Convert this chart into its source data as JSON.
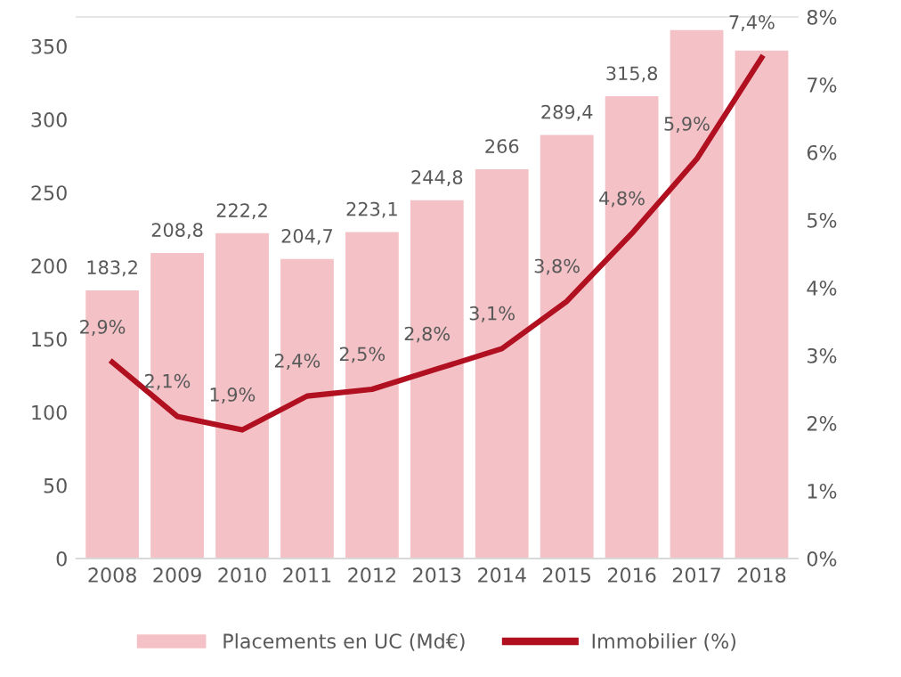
{
  "chart_data": {
    "type": "bar",
    "categories": [
      "2008",
      "2009",
      "2010",
      "2011",
      "2012",
      "2013",
      "2014",
      "2015",
      "2016",
      "2017",
      "2018"
    ],
    "series": [
      {
        "name": "Placements en UC (Md€)",
        "color": "#f4c2c6",
        "values": [
          183.2,
          208.8,
          222.2,
          204.7,
          223.1,
          244.8,
          266,
          289.4,
          315.8,
          361,
          347
        ],
        "value_labels": [
          "183,2",
          "208,8",
          "222,2",
          "204,7",
          "223,1",
          "244,8",
          "266",
          "289,4",
          "315,8",
          null,
          null
        ]
      },
      {
        "name": "Immobilier (%)",
        "type": "line",
        "axis": "y2",
        "color": "#b01020",
        "values": [
          2.9,
          2.1,
          1.9,
          2.4,
          2.5,
          2.8,
          3.1,
          3.8,
          4.8,
          5.9,
          7.4
        ],
        "value_labels": [
          "2,9%",
          "2,1%",
          "1,9%",
          "2,4%",
          "2,5%",
          "2,8%",
          "3,1%",
          "3,8%",
          "4,8%",
          "5,9%",
          "7,4%"
        ]
      }
    ],
    "ylim": [
      0,
      370
    ],
    "yticks": [
      0,
      50,
      100,
      150,
      200,
      250,
      300,
      350
    ],
    "y2lim": [
      0,
      8
    ],
    "y2ticks": [
      {
        "value": 0,
        "label": "0%"
      },
      {
        "value": 1,
        "label": "1%"
      },
      {
        "value": 2,
        "label": "2%"
      },
      {
        "value": 3,
        "label": "3%"
      },
      {
        "value": 4,
        "label": "4%"
      },
      {
        "value": 5,
        "label": "5%"
      },
      {
        "value": 6,
        "label": "6%"
      },
      {
        "value": 7,
        "label": "7%"
      },
      {
        "value": 8,
        "label": "8%"
      }
    ],
    "legend": "bottom",
    "marker": "none"
  }
}
